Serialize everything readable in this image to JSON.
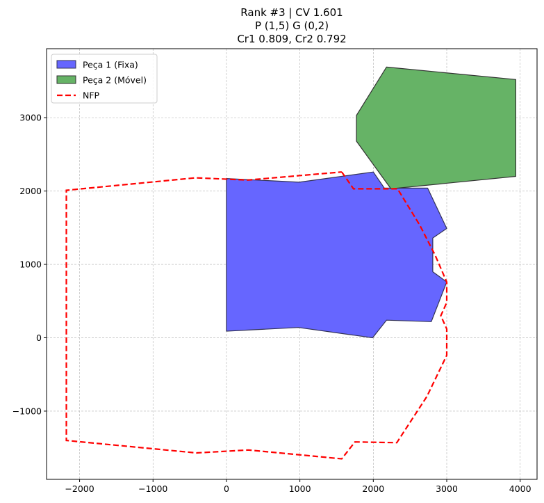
{
  "chart_data": {
    "type": "polygon-plot",
    "title_lines": [
      "Rank #3 | CV 1.601",
      "P (1,5) G (0,2)",
      "Cr1 0.809, Cr2 0.792"
    ],
    "xlim": [
      -2450,
      4230
    ],
    "ylim": [
      -1930,
      3940
    ],
    "x_ticks": [
      -2000,
      -1000,
      0,
      1000,
      2000,
      3000,
      4000
    ],
    "x_tick_labels": [
      "−2000",
      "−1000",
      "0",
      "1000",
      "2000",
      "3000",
      "4000"
    ],
    "y_ticks": [
      -1000,
      0,
      1000,
      2000,
      3000
    ],
    "y_tick_labels": [
      "−1000",
      "0",
      "1000",
      "2000",
      "3000"
    ],
    "grid": true,
    "legend_position": "top-left",
    "series": [
      {
        "name": "Peça 1 (Fixa)",
        "kind": "polygon",
        "fill": "#6666ff",
        "stroke": "#333355",
        "points": [
          [
            0,
            2170
          ],
          [
            990,
            2120
          ],
          [
            2000,
            2260
          ],
          [
            2150,
            2040
          ],
          [
            2740,
            2040
          ],
          [
            3000,
            1490
          ],
          [
            2810,
            1360
          ],
          [
            2810,
            900
          ],
          [
            3000,
            760
          ],
          [
            2790,
            220
          ],
          [
            2180,
            240
          ],
          [
            1990,
            0
          ],
          [
            980,
            140
          ],
          [
            0,
            90
          ]
        ]
      },
      {
        "name": "Peça 2 (Móvel)",
        "kind": "polygon",
        "fill": "#66b366",
        "stroke": "#333333",
        "points": [
          [
            2180,
            3690
          ],
          [
            3940,
            3520
          ],
          [
            3940,
            2200
          ],
          [
            2240,
            2030
          ],
          [
            1770,
            2680
          ],
          [
            1770,
            3030
          ]
        ]
      },
      {
        "name": "NFP",
        "kind": "dashed-line",
        "stroke": "#ff0000",
        "points": [
          [
            1570,
            2260
          ],
          [
            1730,
            2030
          ],
          [
            2330,
            2030
          ],
          [
            2630,
            1540
          ],
          [
            2840,
            1130
          ],
          [
            3000,
            760
          ],
          [
            3000,
            480
          ],
          [
            2920,
            300
          ],
          [
            3000,
            120
          ],
          [
            3000,
            -240
          ],
          [
            2730,
            -800
          ],
          [
            2320,
            -1430
          ],
          [
            1750,
            -1420
          ],
          [
            1570,
            -1650
          ],
          [
            300,
            -1530
          ],
          [
            -410,
            -1570
          ],
          [
            -2180,
            -1400
          ],
          [
            -2180,
            2010
          ],
          [
            -420,
            2180
          ],
          [
            290,
            2150
          ],
          [
            1570,
            2260
          ]
        ]
      }
    ]
  }
}
